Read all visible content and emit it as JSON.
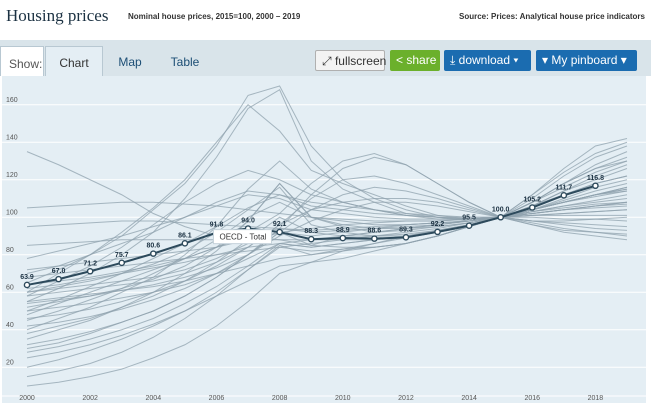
{
  "header": {
    "title": "Housing prices",
    "subtitle": "Nominal house prices, 2015=100, 2000 – 2019",
    "source": "Source: Prices: Analytical house price indicators"
  },
  "toolbar": {
    "show_label": "Show:",
    "tabs": [
      {
        "label": "Chart",
        "active": true
      },
      {
        "label": "Map",
        "active": false
      },
      {
        "label": "Table",
        "active": false
      }
    ],
    "fullscreen_label": "fullscreen",
    "share_label": "share",
    "download_label": "download",
    "pinboard_label": "My pinboard"
  },
  "colors": {
    "highlight": "#2d4a5c",
    "background_lines": "#8fa1ad",
    "panel": "#e4eef4",
    "share": "#6bb02b",
    "primary": "#1b6cb0"
  },
  "chart_data": {
    "type": "line",
    "title": "Housing prices",
    "subtitle": "Nominal house prices, 2015=100, 2000 – 2019",
    "xlim": [
      2000,
      2019
    ],
    "ylim": [
      10,
      170
    ],
    "x_ticks": [
      "2000",
      "2002",
      "2004",
      "2006",
      "2008",
      "2010",
      "2012",
      "2014",
      "2016",
      "2018"
    ],
    "y_ticks": [
      "20",
      "40",
      "60",
      "80",
      "100",
      "120",
      "140",
      "160"
    ],
    "highlight_series": {
      "name": "OECD - Total",
      "x": [
        2000,
        2001,
        2002,
        2003,
        2004,
        2005,
        2006,
        2007,
        2008,
        2009,
        2010,
        2011,
        2012,
        2013,
        2014,
        2015,
        2016,
        2017,
        2018
      ],
      "values": [
        63.9,
        67.0,
        71.2,
        75.7,
        80.6,
        86.1,
        91.8,
        94.0,
        92.1,
        88.3,
        88.9,
        88.6,
        89.3,
        92.2,
        95.5,
        100.0,
        105.2,
        111.7,
        116.8
      ],
      "labels": [
        "63.9",
        "67.0",
        "71.2",
        "75.7",
        "80.6",
        "86.1",
        "91.8",
        "94.0",
        "92.1",
        "88.3",
        "88.9",
        "88.6",
        "89.3",
        "92.2",
        "95.5",
        "100.0",
        "105.2",
        "111.7",
        "116.8"
      ]
    },
    "tooltip": "OECD - Total",
    "background_series": [
      [
        135,
        128,
        120,
        112,
        102,
        95,
        90,
        90,
        88,
        85,
        90,
        92,
        94,
        96,
        98,
        100,
        104,
        108,
        112,
        116
      ],
      [
        60,
        70,
        80,
        92,
        105,
        120,
        140,
        160,
        146,
        125,
        118,
        112,
        106,
        101,
        99,
        100,
        108,
        118,
        126,
        130
      ],
      [
        55,
        62,
        70,
        80,
        92,
        110,
        132,
        158,
        168,
        130,
        115,
        108,
        102,
        100,
        99,
        100,
        110,
        122,
        132,
        138
      ],
      [
        65,
        72,
        80,
        90,
        104,
        118,
        138,
        165,
        170,
        138,
        120,
        110,
        104,
        100,
        98,
        100,
        112,
        124,
        134,
        140
      ],
      [
        58,
        66,
        74,
        84,
        96,
        108,
        118,
        125,
        120,
        112,
        108,
        104,
        101,
        99,
        99,
        100,
        106,
        112,
        118,
        122
      ],
      [
        70,
        74,
        80,
        86,
        92,
        100,
        108,
        114,
        112,
        106,
        104,
        102,
        101,
        100,
        99,
        100,
        104,
        110,
        116,
        120
      ],
      [
        78,
        82,
        86,
        90,
        95,
        100,
        106,
        112,
        110,
        104,
        102,
        100,
        99,
        99,
        99,
        100,
        103,
        106,
        109,
        112
      ],
      [
        50,
        56,
        63,
        70,
        78,
        86,
        95,
        105,
        112,
        108,
        106,
        104,
        102,
        101,
        100,
        100,
        101,
        102,
        103,
        104
      ],
      [
        45,
        50,
        56,
        62,
        70,
        78,
        88,
        100,
        108,
        100,
        98,
        96,
        96,
        97,
        98,
        100,
        103,
        106,
        108,
        110
      ],
      [
        48,
        54,
        60,
        66,
        72,
        78,
        84,
        90,
        94,
        92,
        93,
        94,
        95,
        96,
        98,
        100,
        104,
        108,
        112,
        116
      ],
      [
        60,
        62,
        64,
        66,
        68,
        72,
        78,
        86,
        92,
        90,
        92,
        94,
        96,
        97,
        98,
        100,
        102,
        104,
        106,
        108
      ],
      [
        85,
        86,
        87,
        88,
        88,
        88,
        88,
        88,
        88,
        88,
        90,
        92,
        94,
        96,
        98,
        100,
        102,
        104,
        106,
        108
      ],
      [
        95,
        96,
        97,
        98,
        98,
        97,
        96,
        95,
        94,
        93,
        94,
        95,
        96,
        97,
        98,
        100,
        101,
        101,
        101,
        101
      ],
      [
        105,
        106,
        107,
        108,
        108,
        107,
        106,
        104,
        102,
        100,
        99,
        98,
        98,
        98,
        99,
        100,
        100,
        99,
        99,
        98
      ],
      [
        40,
        46,
        52,
        60,
        68,
        80,
        95,
        115,
        130,
        115,
        108,
        104,
        101,
        100,
        100,
        100,
        106,
        114,
        120,
        126
      ],
      [
        35,
        40,
        45,
        52,
        60,
        70,
        82,
        98,
        118,
        100,
        95,
        92,
        93,
        95,
        97,
        100,
        108,
        118,
        128,
        135
      ],
      [
        30,
        33,
        38,
        44,
        50,
        58,
        68,
        80,
        92,
        85,
        84,
        84,
        86,
        90,
        95,
        100,
        108,
        116,
        124,
        130
      ],
      [
        38,
        42,
        46,
        52,
        58,
        66,
        76,
        88,
        100,
        92,
        90,
        90,
        91,
        93,
        96,
        100,
        104,
        108,
        112,
        114
      ],
      [
        50,
        52,
        54,
        57,
        60,
        64,
        70,
        78,
        86,
        84,
        86,
        88,
        90,
        92,
        95,
        100,
        104,
        108,
        112,
        115
      ],
      [
        55,
        57,
        59,
        61,
        63,
        66,
        70,
        74,
        78,
        80,
        83,
        86,
        89,
        92,
        96,
        100,
        104,
        108,
        111,
        114
      ],
      [
        15,
        18,
        22,
        28,
        36,
        46,
        58,
        72,
        85,
        80,
        82,
        84,
        86,
        90,
        95,
        100,
        108,
        118,
        126,
        132
      ],
      [
        20,
        24,
        29,
        35,
        42,
        50,
        60,
        72,
        84,
        82,
        83,
        84,
        86,
        90,
        95,
        100,
        106,
        112,
        118,
        122
      ],
      [
        25,
        28,
        32,
        37,
        43,
        50,
        58,
        66,
        74,
        76,
        78,
        82,
        86,
        90,
        95,
        100,
        104,
        108,
        112,
        115
      ],
      [
        28,
        31,
        35,
        40,
        46,
        54,
        63,
        74,
        86,
        88,
        88,
        88,
        89,
        92,
        96,
        100,
        102,
        104,
        105,
        106
      ],
      [
        10,
        12,
        15,
        19,
        25,
        32,
        42,
        55,
        70,
        76,
        82,
        86,
        90,
        93,
        96,
        100,
        104,
        109,
        114,
        118
      ],
      [
        62,
        64,
        67,
        70,
        73,
        76,
        80,
        84,
        86,
        84,
        86,
        88,
        90,
        93,
        96,
        100,
        102,
        104,
        106,
        107
      ],
      [
        68,
        70,
        72,
        74,
        76,
        78,
        80,
        82,
        84,
        86,
        88,
        90,
        92,
        94,
        97,
        100,
        103,
        105,
        107,
        108
      ],
      [
        72,
        74,
        76,
        78,
        80,
        82,
        84,
        88,
        92,
        94,
        96,
        97,
        98,
        98,
        99,
        100,
        101,
        102,
        103,
        104
      ],
      [
        54,
        56,
        58,
        61,
        64,
        68,
        73,
        80,
        90,
        98,
        104,
        108,
        108,
        106,
        103,
        100,
        98,
        96,
        94,
        93
      ],
      [
        46,
        48,
        51,
        55,
        60,
        66,
        74,
        84,
        96,
        110,
        120,
        122,
        118,
        112,
        106,
        100,
        96,
        92,
        90,
        88
      ],
      [
        58,
        60,
        62,
        64,
        66,
        70,
        76,
        84,
        96,
        104,
        108,
        110,
        110,
        108,
        104,
        100,
        97,
        94,
        92,
        90
      ],
      [
        42,
        44,
        47,
        51,
        56,
        62,
        70,
        80,
        94,
        112,
        126,
        132,
        128,
        118,
        108,
        100,
        96,
        93,
        92,
        91
      ],
      [
        64,
        66,
        68,
        71,
        74,
        78,
        84,
        92,
        102,
        118,
        130,
        134,
        128,
        118,
        108,
        100,
        98,
        97,
        96,
        95
      ],
      [
        52,
        55,
        58,
        62,
        67,
        74,
        84,
        98,
        118,
        100,
        96,
        94,
        94,
        95,
        97,
        100,
        106,
        114,
        122,
        128
      ],
      [
        60,
        63,
        66,
        70,
        75,
        82,
        92,
        104,
        116,
        96,
        92,
        90,
        90,
        92,
        95,
        100,
        112,
        126,
        138,
        142
      ],
      [
        32,
        35,
        39,
        44,
        50,
        58,
        68,
        80,
        92,
        104,
        112,
        116,
        114,
        110,
        105,
        100,
        98,
        98,
        99,
        100
      ]
    ]
  }
}
